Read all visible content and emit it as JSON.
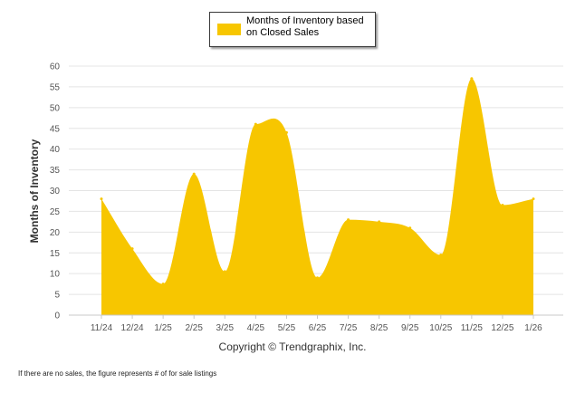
{
  "chart_data": {
    "type": "area",
    "categories": [
      "11/24",
      "12/24",
      "1/25",
      "2/25",
      "3/25",
      "4/25",
      "5/25",
      "6/25",
      "7/25",
      "8/25",
      "9/25",
      "10/25",
      "11/25",
      "12/25",
      "1/26"
    ],
    "series": [
      {
        "name": "Months of Inventory based on Closed Sales",
        "values": [
          28,
          16,
          7.5,
          34,
          10.5,
          46,
          44,
          9,
          23,
          22.5,
          21,
          14.5,
          57,
          26.5,
          28
        ]
      }
    ],
    "ylabel": "Months of Inventory",
    "xlabel": "",
    "ylim": [
      0,
      60
    ],
    "yticks": [
      0,
      5,
      10,
      15,
      20,
      25,
      30,
      35,
      40,
      45,
      50,
      55,
      60
    ],
    "grid": true,
    "legend": "top-center",
    "color": "#f7c600"
  },
  "legend_label": "Months of Inventory based on Closed Sales",
  "copyright": "Copyright © Trendgraphix, Inc.",
  "footnote": "If there are no sales, the figure represents # of for sale listings"
}
